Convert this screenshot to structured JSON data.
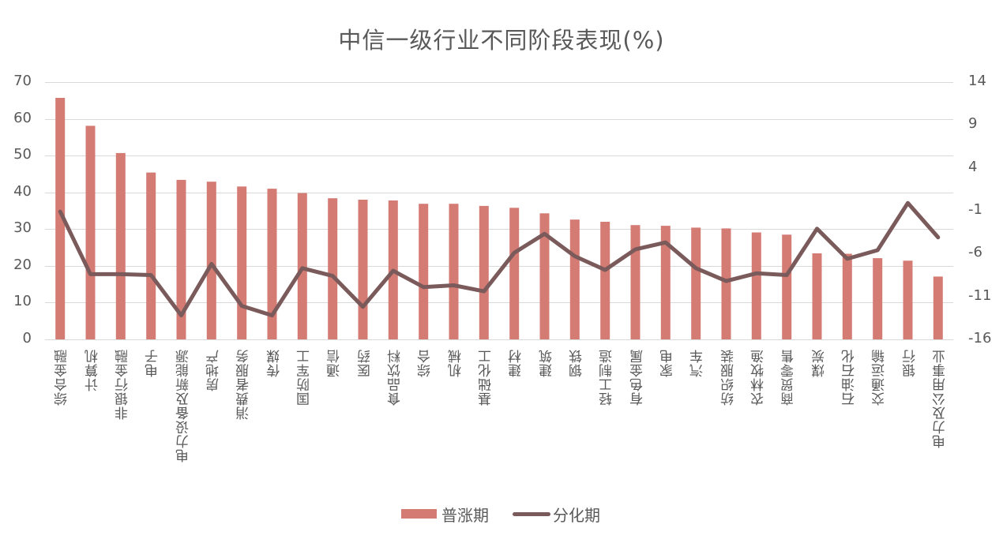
{
  "chart_data": {
    "type": "bar+line",
    "title": "中信一级行业不同阶段表现(%)",
    "categories": [
      "综合金融",
      "计算机",
      "非银行金融",
      "电子",
      "电力设备及新能源",
      "房地产",
      "消费者服务",
      "传媒",
      "国防军工",
      "通信",
      "医药",
      "食品饮料",
      "综合",
      "机械",
      "基础化工",
      "建材",
      "建筑",
      "钢铁",
      "轻工制造",
      "有色金属",
      "家电",
      "汽车",
      "纺织服装",
      "农林牧渔",
      "商贸零售",
      "煤炭",
      "石油石化",
      "交通运输",
      "银行",
      "电力及公用事业"
    ],
    "series": [
      {
        "name": "普涨期",
        "type": "bar",
        "axis": "left",
        "color": "#D47B74",
        "values": [
          65.7,
          58.1,
          50.7,
          45.4,
          43.4,
          42.9,
          41.6,
          41.0,
          39.8,
          38.4,
          38.0,
          37.8,
          36.9,
          36.9,
          36.3,
          35.8,
          34.3,
          32.6,
          32.0,
          31.1,
          30.9,
          30.4,
          30.2,
          29.1,
          28.5,
          23.4,
          23.3,
          22.1,
          21.4,
          17.1
        ]
      },
      {
        "name": "分化期",
        "type": "line",
        "axis": "right",
        "color": "#7A5A5A",
        "values": [
          -1.1,
          -8.4,
          -8.4,
          -8.5,
          -13.2,
          -7.2,
          -12.1,
          -13.2,
          -7.7,
          -8.6,
          -12.2,
          -8.0,
          -9.9,
          -9.7,
          -10.4,
          -5.9,
          -3.7,
          -6.3,
          -7.9,
          -5.5,
          -4.7,
          -7.7,
          -9.2,
          -8.3,
          -8.5,
          -3.1,
          -6.6,
          -5.6,
          -0.1,
          -4.1
        ]
      }
    ],
    "left_axis": {
      "ylim": [
        0,
        70
      ],
      "ticks": [
        70,
        60,
        50,
        40,
        30,
        20,
        10,
        0
      ]
    },
    "right_axis": {
      "ylim": [
        -16,
        14
      ],
      "ticks": [
        14,
        9,
        4,
        -1,
        -6,
        -11,
        -16
      ]
    },
    "xlabel": "",
    "ylabel": "",
    "grid": true,
    "legend_position": "bottom"
  },
  "legend": {
    "bar_label": "普涨期",
    "line_label": "分化期"
  }
}
